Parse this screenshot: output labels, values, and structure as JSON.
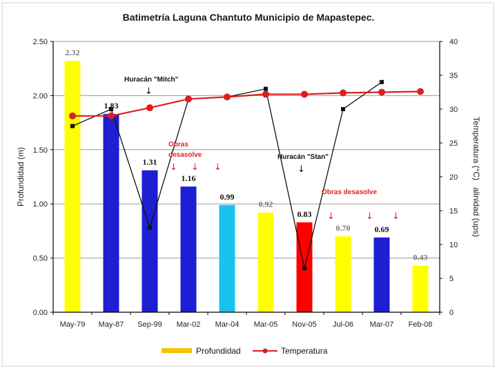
{
  "chart_data": {
    "type": "bar",
    "title": "Batimetría Laguna Chantuto Municipio de Mapastepec.",
    "categories": [
      "May-79",
      "May-87",
      "Sep-99",
      "Mar-02",
      "Mar-04",
      "Mar-05",
      "Nov-05",
      "Jul-06",
      "Mar-07",
      "Feb-08"
    ],
    "series": [
      {
        "name": "Profundidad",
        "type": "bar",
        "axis": "left",
        "values": [
          2.32,
          1.83,
          1.31,
          1.16,
          0.99,
          0.92,
          0.83,
          0.7,
          0.69,
          0.43
        ],
        "labels": [
          "2.32",
          "1.83",
          "1.31",
          "1.16",
          "0.99",
          "0.92",
          "0.83",
          "0.70",
          "0.69",
          "0.43"
        ],
        "colors": [
          "#ffff00",
          "#1e1ed2",
          "#1e1ed2",
          "#1e1ed2",
          "#19c3f0",
          "#ffff00",
          "#ff0000",
          "#ffff00",
          "#1e1ed2",
          "#ffff00"
        ],
        "legend_color": "#f5c400"
      },
      {
        "name": "Temperatura",
        "type": "line",
        "axis": "right",
        "color": "#dc1e1e",
        "values": [
          29,
          29,
          30.2,
          31.5,
          31.8,
          32.2,
          32.2,
          32.4,
          32.5,
          32.6
        ]
      },
      {
        "name": "Salinidad",
        "type": "line",
        "axis": "right",
        "color": "#111111",
        "values": [
          27.5,
          30,
          12.5,
          31.5,
          31.8,
          33,
          6.5,
          30,
          34,
          null
        ]
      }
    ],
    "y_left": {
      "label": "Profundidad (m)",
      "range": [
        0,
        2.5
      ],
      "ticks": [
        "0.00",
        "0.50",
        "1.00",
        "1.50",
        "2.00",
        "2.50"
      ]
    },
    "y_right": {
      "label": "Temperatura (°C)   alinidad (ups)",
      "range": [
        0,
        40
      ],
      "ticks": [
        "0",
        "5",
        "10",
        "15",
        "20",
        "25",
        "30",
        "35",
        "40"
      ]
    },
    "gridlines": "horizontal",
    "legend": {
      "position": "bottom",
      "items": [
        "Profundidad",
        "Temperatura"
      ]
    },
    "annotations": [
      {
        "text": "Huracán \"Mitch\"",
        "color": "black",
        "near": "Sep-99"
      },
      {
        "text": "Obras",
        "color": "red",
        "near": "Sep-99"
      },
      {
        "text": "desasolve",
        "color": "red",
        "near": "Sep-99"
      },
      {
        "text": "Huracán \"Stan\"",
        "color": "black",
        "near": "Nov-05"
      },
      {
        "text": "Obras desasolve",
        "color": "red",
        "near": "Jul-06"
      }
    ]
  }
}
